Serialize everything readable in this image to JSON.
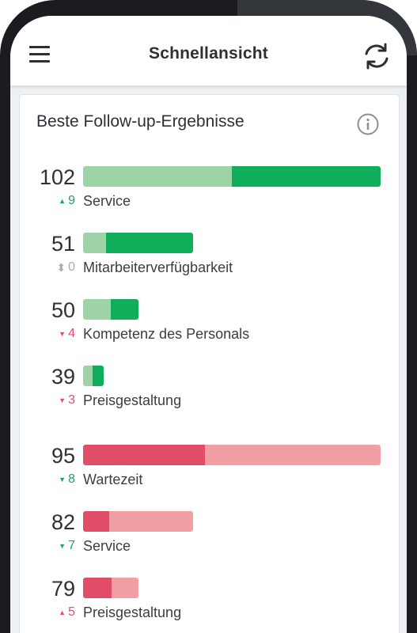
{
  "header": {
    "title": "Schnellansicht"
  },
  "card": {
    "title": "Beste Follow-up-Ergebnisse"
  },
  "colors": {
    "green_dark": "#10ad5a",
    "green_light": "#9dd3a6",
    "red_dark": "#e14d67",
    "red_light": "#f0a0a2"
  },
  "positive_items": [
    {
      "value": "102",
      "delta_icon": "▲",
      "delta": "9",
      "label": "Service",
      "share_light": 0.5,
      "fill": 1.0,
      "trend": "up"
    },
    {
      "value": "51",
      "delta_icon": "⬍",
      "delta": "0",
      "label": "Mitarbeiterverfügbarkeit",
      "share_light": 0.21,
      "fill": 0.37,
      "trend": "neutral"
    },
    {
      "value": "50",
      "delta_icon": "▼",
      "delta": "4",
      "label": "Kompetenz des Personals",
      "share_light": 0.5,
      "fill": 0.185,
      "trend": "down"
    },
    {
      "value": "39",
      "delta_icon": "▼",
      "delta": "3",
      "label": "Preisgestaltung",
      "share_light": 0.45,
      "fill": 0.07,
      "trend": "down"
    }
  ],
  "negative_items": [
    {
      "value": "95",
      "delta_icon": "▼",
      "delta": "8",
      "label": "Wartezeit",
      "share_dark": 0.41,
      "fill": 1.0,
      "trend": "down-good"
    },
    {
      "value": "82",
      "delta_icon": "▼",
      "delta": "7",
      "label": "Service",
      "share_dark": 0.24,
      "fill": 0.37,
      "trend": "down-good"
    },
    {
      "value": "79",
      "delta_icon": "▲",
      "delta": "5",
      "label": "Preisgestaltung",
      "share_dark": 0.51,
      "fill": 0.185,
      "trend": "up-bad"
    }
  ]
}
